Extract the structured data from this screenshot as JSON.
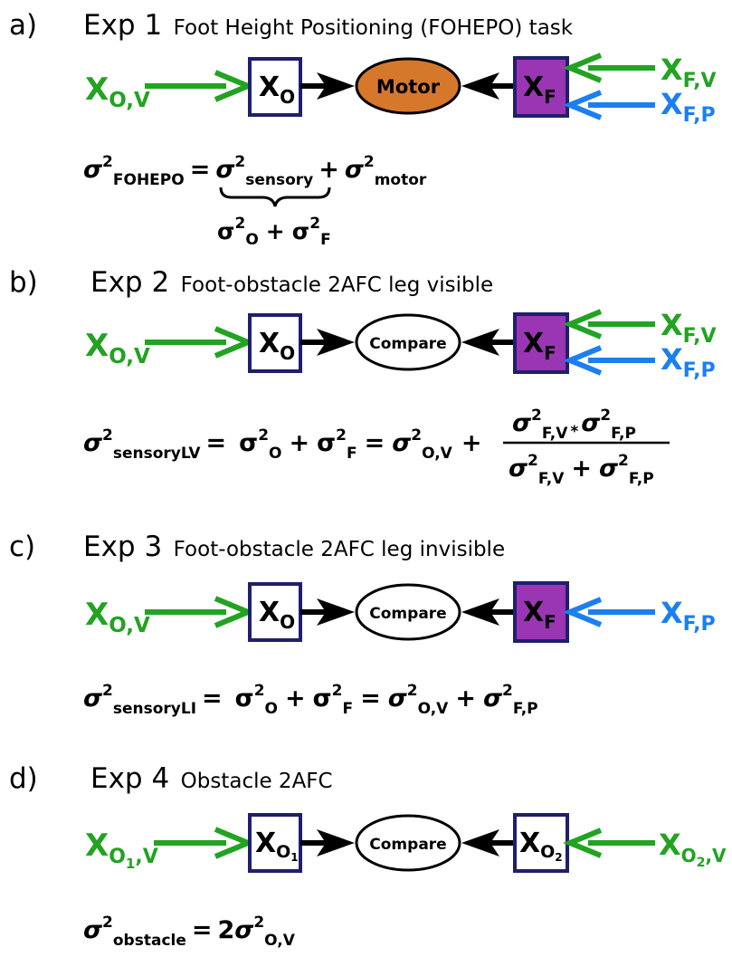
{
  "colors": {
    "green": "#22a322",
    "blue": "#1b7ff0",
    "box_border": "#1f1f6e",
    "purple": "#9a36b4",
    "motor": "#d6782c",
    "black": "#000000"
  },
  "panels": [
    {
      "label": "a)",
      "exp": "Exp 1",
      "name": "Foot Height Positioning (FOHEPO) task",
      "center_node": "Motor",
      "obstacle_input": "X",
      "obstacle_input_sub": "O,V",
      "obstacle_box": "X",
      "obstacle_box_sub": "O",
      "foot_box": "X",
      "foot_box_sub": "F",
      "foot_inputs": [
        {
          "main": "X",
          "sub": "F,V",
          "color": "green"
        },
        {
          "main": "X",
          "sub": "F,P",
          "color": "blue"
        }
      ],
      "equation": {
        "lhs_sub": "FOHEPO",
        "t1_sub": "sensory",
        "t2_sub": "motor",
        "brace_t1_sub": "O",
        "brace_t2_sub": "F"
      }
    },
    {
      "label": "b)",
      "exp": "Exp 2",
      "name": "Foot-obstacle 2AFC leg visible",
      "center_node": "Compare",
      "obstacle_input": "X",
      "obstacle_input_sub": "O,V",
      "obstacle_box": "X",
      "obstacle_box_sub": "O",
      "foot_box": "X",
      "foot_box_sub": "F",
      "foot_inputs": [
        {
          "main": "X",
          "sub": "F,V",
          "color": "green"
        },
        {
          "main": "X",
          "sub": "F,P",
          "color": "blue"
        }
      ],
      "equation": {
        "lhs_sub": "sensoryLV",
        "t1_sub": "O",
        "t2_sub": "F",
        "t3_sub": "O,V",
        "num_a_sub": "F,V",
        "num_op": "*",
        "num_b_sub": "F,P",
        "den_a_sub": "F,V",
        "den_b_sub": "F,P"
      }
    },
    {
      "label": "c)",
      "exp": "Exp 3",
      "name": "Foot-obstacle 2AFC leg invisible",
      "center_node": "Compare",
      "obstacle_input": "X",
      "obstacle_input_sub": "O,V",
      "obstacle_box": "X",
      "obstacle_box_sub": "O",
      "foot_box": "X",
      "foot_box_sub": "F",
      "foot_inputs": [
        {
          "main": "X",
          "sub": "F,P",
          "color": "blue"
        }
      ],
      "equation": {
        "lhs_sub": "sensoryLI",
        "t1_sub": "O",
        "t2_sub": "F",
        "t3_sub": "O,V",
        "t4_sub": "F,P"
      }
    },
    {
      "label": "d)",
      "exp": "Exp 4",
      "name": "Obstacle 2AFC",
      "center_node": "Compare",
      "left_input": "X",
      "left_input_sub": "O",
      "left_input_subsub": "1",
      "left_input_tail": ",V",
      "left_box": "X",
      "left_box_sub": "O",
      "left_box_subsub": "1",
      "right_box": "X",
      "right_box_sub": "O",
      "right_box_subsub": "2",
      "right_input": "X",
      "right_input_sub": "O",
      "right_input_subsub": "2",
      "right_input_tail": ",V",
      "equation": {
        "lhs_sub": "obstacle",
        "rhs_coef": "2",
        "rhs_sub": "O,V"
      }
    }
  ],
  "symbols": {
    "sigma": "σ",
    "sq": "2",
    "plus": "+",
    "eq": "="
  }
}
